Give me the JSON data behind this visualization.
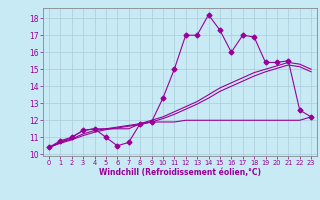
{
  "x": [
    0,
    1,
    2,
    3,
    4,
    5,
    6,
    7,
    8,
    9,
    10,
    11,
    12,
    13,
    14,
    15,
    16,
    17,
    18,
    19,
    20,
    21,
    22,
    23
  ],
  "y_main": [
    10.4,
    10.8,
    11.0,
    11.4,
    11.5,
    11.0,
    10.5,
    10.7,
    11.8,
    11.9,
    13.3,
    15.0,
    17.0,
    17.0,
    18.2,
    17.3,
    16.0,
    17.0,
    16.9,
    15.4,
    15.4,
    15.5,
    12.6,
    12.2
  ],
  "y_smooth1": [
    10.4,
    10.7,
    10.9,
    11.2,
    11.4,
    11.5,
    11.6,
    11.7,
    11.8,
    12.0,
    12.2,
    12.5,
    12.8,
    13.1,
    13.5,
    13.9,
    14.2,
    14.5,
    14.8,
    15.0,
    15.2,
    15.4,
    15.3,
    15.0
  ],
  "y_smooth2": [
    10.4,
    10.65,
    10.85,
    11.1,
    11.3,
    11.45,
    11.55,
    11.65,
    11.75,
    11.9,
    12.1,
    12.35,
    12.65,
    12.95,
    13.3,
    13.7,
    14.0,
    14.3,
    14.6,
    14.85,
    15.05,
    15.25,
    15.15,
    14.85
  ],
  "y_flat": [
    10.4,
    10.7,
    11.0,
    11.4,
    11.5,
    11.5,
    11.5,
    11.5,
    11.8,
    11.9,
    11.9,
    11.9,
    12.0,
    12.0,
    12.0,
    12.0,
    12.0,
    12.0,
    12.0,
    12.0,
    12.0,
    12.0,
    12.0,
    12.2
  ],
  "line_color": "#990099",
  "bg_color": "#c8eaf4",
  "grid_color": "#aaccdd",
  "ylabel_vals": [
    10,
    11,
    12,
    13,
    14,
    15,
    16,
    17,
    18
  ],
  "xlabel": "Windchill (Refroidissement éolien,°C)",
  "xlim": [
    -0.5,
    23.5
  ],
  "ylim": [
    9.9,
    18.6
  ],
  "marker": "D",
  "markersize": 2.5
}
